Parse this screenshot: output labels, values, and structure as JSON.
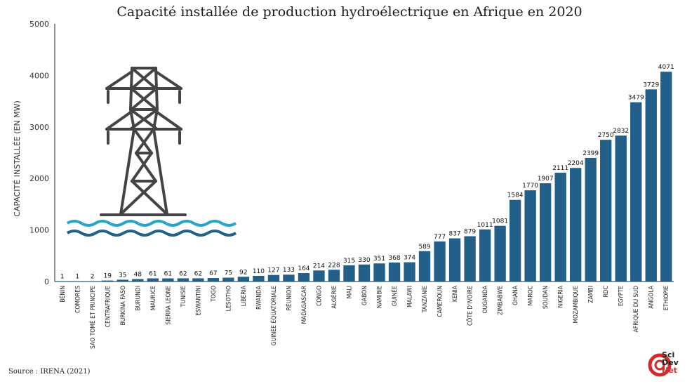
{
  "colors": {
    "bar": "#226089",
    "tower": "#444444",
    "wave_light": "#2aa5c8",
    "wave_dark": "#226089",
    "logo_red": "#d42b2b"
  },
  "icons": {
    "illustration": "power-pylon-over-water-icon",
    "logo": "scidevnet-logo"
  },
  "logo": {
    "line1": "Sci",
    "line2": "Dev",
    "line3": "Net"
  },
  "source": "Source : IRENA (2021)",
  "chart_data": {
    "type": "bar",
    "title": "Capacité installée de production hydroélectrique en Afrique en 2020",
    "xlabel": "",
    "ylabel": "CAPACITÉ INSTALLÉE (EN MW)",
    "ylim": [
      0,
      5000
    ],
    "yticks": [
      0,
      1000,
      2000,
      3000,
      4000,
      5000
    ],
    "grid": false,
    "categories": [
      "BÉNIN",
      "COMORES",
      "SAO TOMÉ ET PRINCIPE",
      "CENTRAFRIQUE",
      "BURKINA FASO",
      "BURUNDI",
      "MAURICE",
      "SIERRA LEONE",
      "TUNISIE",
      "ESWANTINI",
      "TOGO",
      "LESOTHO",
      "LIBERIA",
      "RWANDA",
      "GUINÉE ÉQUATORIALE",
      "RÉUNION",
      "MADAGASCAR",
      "CONGO",
      "ALGÉRIE",
      "MALI",
      "GABON",
      "NAMIBIE",
      "GUINÉE",
      "MALAWI",
      "TANZANIE",
      "CAMEROUN",
      "KENIA",
      "CÔTE D'IVOIRE",
      "OUGANDA",
      "ZIMBABWE",
      "GHANA",
      "MAROC",
      "SOUDAN",
      "NIGERIA",
      "MOZAMBIQUE",
      "ZAMBI",
      "RDC",
      "EGYPTE",
      "AFRIQUE DU SUD",
      "ANGOLA",
      "ETHIOPIE"
    ],
    "values": [
      1,
      1,
      2,
      19,
      35,
      48,
      61,
      61,
      62,
      62,
      67,
      75,
      92,
      110,
      127,
      133,
      164,
      214,
      228,
      315,
      330,
      351,
      368,
      374,
      589,
      777,
      837,
      879,
      1011,
      1081,
      1584,
      1770,
      1907,
      2111,
      2204,
      2399,
      2750,
      2832,
      3479,
      3729,
      4071
    ]
  }
}
